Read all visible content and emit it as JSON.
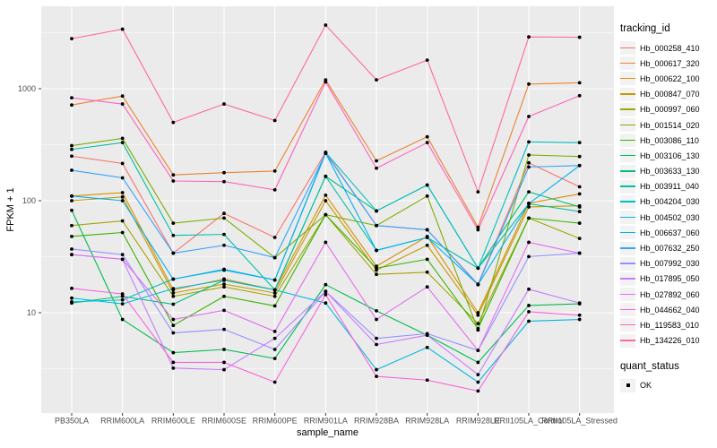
{
  "figure": {
    "background": "#FFFFFF",
    "panel_background": "#EBEBEB",
    "gridline_color": "#FFFFFF",
    "tick_label_color": "#4D4D4D",
    "axis_title_color": "#000000",
    "point_color": "#000000",
    "legend_key_background": "#F2F2F2"
  },
  "legend": {
    "tracking_title": "tracking_id",
    "quant_title": "quant_status",
    "quant_items": [
      {
        "label": "OK",
        "marker": "black-point"
      }
    ]
  },
  "chart_data": {
    "type": "line",
    "title": "",
    "xlabel": "sample_name",
    "ylabel": "FPKM + 1",
    "y_scale": "log10",
    "ylim": [
      1.3,
      5400
    ],
    "y_ticks": [
      10,
      100,
      1000
    ],
    "y_minor_gridlines": [
      3.162,
      31.62,
      316.2,
      3162
    ],
    "grid": "major and minor, white on gray panel",
    "legend_position": "right",
    "point_marker": "small black point at every vertex (quant_status = OK)",
    "x_categories": [
      "PB350LA",
      "RRIM600LA",
      "RRIM600LE",
      "RRIM600SE",
      "RRIM600PE",
      "RRIM901LA",
      "RRIM928BA",
      "RRIM928LA",
      "RRIM928LE",
      "RRII105LA_Control",
      "RRII105LA_Stressed"
    ],
    "series": [
      {
        "name": "Hb_000258_410",
        "color": "#F8766D",
        "values": [
          250,
          215,
          34,
          77,
          47,
          270,
          60,
          55,
          18,
          218,
          133
        ]
      },
      {
        "name": "Hb_000617_320",
        "color": "#EA8331",
        "values": [
          715,
          860,
          170,
          178,
          184,
          1200,
          227,
          372,
          58,
          1100,
          1130
        ]
      },
      {
        "name": "Hb_000622_100",
        "color": "#D89000",
        "values": [
          110,
          118,
          16,
          20,
          16,
          112,
          26,
          48,
          10,
          95,
          115
        ]
      },
      {
        "name": "Hb_000847_070",
        "color": "#C09B00",
        "values": [
          100,
          108,
          15,
          18,
          15,
          100,
          24,
          40,
          9.5,
          88,
          90
        ]
      },
      {
        "name": "Hb_000997_060",
        "color": "#A3A500",
        "values": [
          60,
          66,
          14,
          17,
          14,
          75,
          22,
          23,
          8,
          70,
          46
        ]
      },
      {
        "name": "Hb_001514_020",
        "color": "#7CAE00",
        "values": [
          310,
          360,
          63,
          70,
          31,
          75,
          60,
          110,
          7,
          256,
          248
        ]
      },
      {
        "name": "Hb_003086_110",
        "color": "#39B600",
        "values": [
          48,
          52,
          7.7,
          14,
          11.5,
          75,
          25,
          30,
          7.2,
          70,
          63
        ]
      },
      {
        "name": "Hb_003106_130",
        "color": "#00BB4E",
        "values": [
          82,
          8.7,
          4.4,
          4.7,
          3.9,
          17.8,
          10.4,
          6.3,
          3.6,
          11.6,
          12
        ]
      },
      {
        "name": "Hb_003633_130",
        "color": "#00BF7D",
        "values": [
          12.2,
          14,
          11.9,
          19.5,
          16,
          165,
          81,
          138,
          25,
          120,
          88
        ]
      },
      {
        "name": "Hb_003911_040",
        "color": "#00C1A3",
        "values": [
          287,
          330,
          49,
          50,
          16,
          165,
          36,
          47,
          25,
          94,
          80
        ]
      },
      {
        "name": "Hb_004204_030",
        "color": "#00BFC4",
        "values": [
          12.5,
          13,
          20,
          24,
          19.6,
          270,
          81,
          138,
          25,
          335,
          330
        ]
      },
      {
        "name": "Hb_004502_030",
        "color": "#00BAE0",
        "values": [
          13.5,
          12,
          16.4,
          19.5,
          16,
          12.2,
          3.1,
          4.9,
          2.4,
          8.4,
          8.7
        ]
      },
      {
        "name": "Hb_006637_060",
        "color": "#00B0F6",
        "values": [
          110,
          100,
          19.9,
          24.4,
          19.6,
          265,
          36,
          47,
          17.8,
          94,
          206
        ]
      },
      {
        "name": "Hb_007632_250",
        "color": "#35A2FF",
        "values": [
          187,
          160,
          34,
          40,
          31,
          265,
          60,
          55,
          17.8,
          200,
          206
        ]
      },
      {
        "name": "Hb_007992_030",
        "color": "#9590FF",
        "values": [
          37,
          33,
          6.6,
          7.1,
          4.7,
          15.5,
          5.9,
          6.5,
          4.6,
          31.7,
          34
        ]
      },
      {
        "name": "Hb_017895_050",
        "color": "#C77CFF",
        "values": [
          33,
          30,
          3.2,
          3.1,
          5.9,
          15.5,
          5.2,
          6.3,
          2.8,
          16.2,
          12.2
        ]
      },
      {
        "name": "Hb_027892_060",
        "color": "#E76BF3",
        "values": [
          33,
          30,
          8.7,
          10.5,
          6.8,
          42.5,
          8.7,
          17,
          4.6,
          42.5,
          34
        ]
      },
      {
        "name": "Hb_044662_040",
        "color": "#FA62DB",
        "values": [
          16.5,
          14.7,
          3.6,
          3.6,
          2.4,
          14.5,
          2.7,
          2.5,
          2.0,
          10.2,
          9.5
        ]
      },
      {
        "name": "Hb_119583_010",
        "color": "#FF62BC",
        "values": [
          830,
          730,
          150,
          148,
          125,
          1150,
          195,
          330,
          55,
          565,
          866
        ]
      },
      {
        "name": "Hb_134226_010",
        "color": "#FF6A98",
        "values": [
          2800,
          3400,
          500,
          730,
          520,
          3700,
          1200,
          1800,
          120,
          2900,
          2880
        ]
      }
    ]
  }
}
